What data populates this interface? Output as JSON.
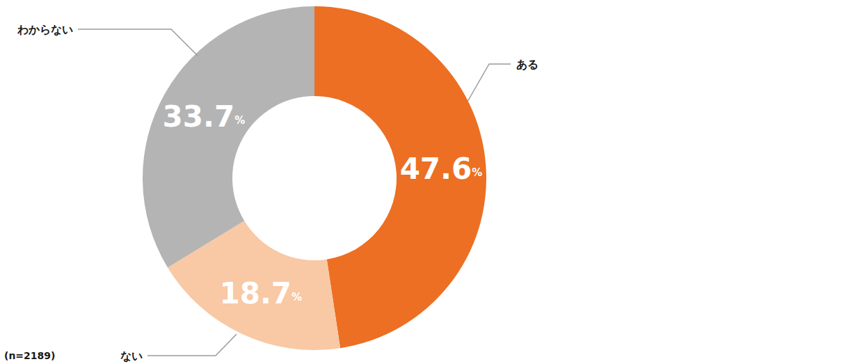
{
  "chart_data": {
    "type": "pie",
    "categories": [
      "ある",
      "ない",
      "わからない"
    ],
    "values": [
      47.6,
      18.7,
      33.7
    ],
    "value_labels": [
      "47.6%",
      "18.7%",
      "33.7%"
    ],
    "colors": [
      "#EC6F23",
      "#F8C9A4",
      "#B4B4B4"
    ],
    "data_labels": true,
    "annotation": "(n=2189)"
  }
}
